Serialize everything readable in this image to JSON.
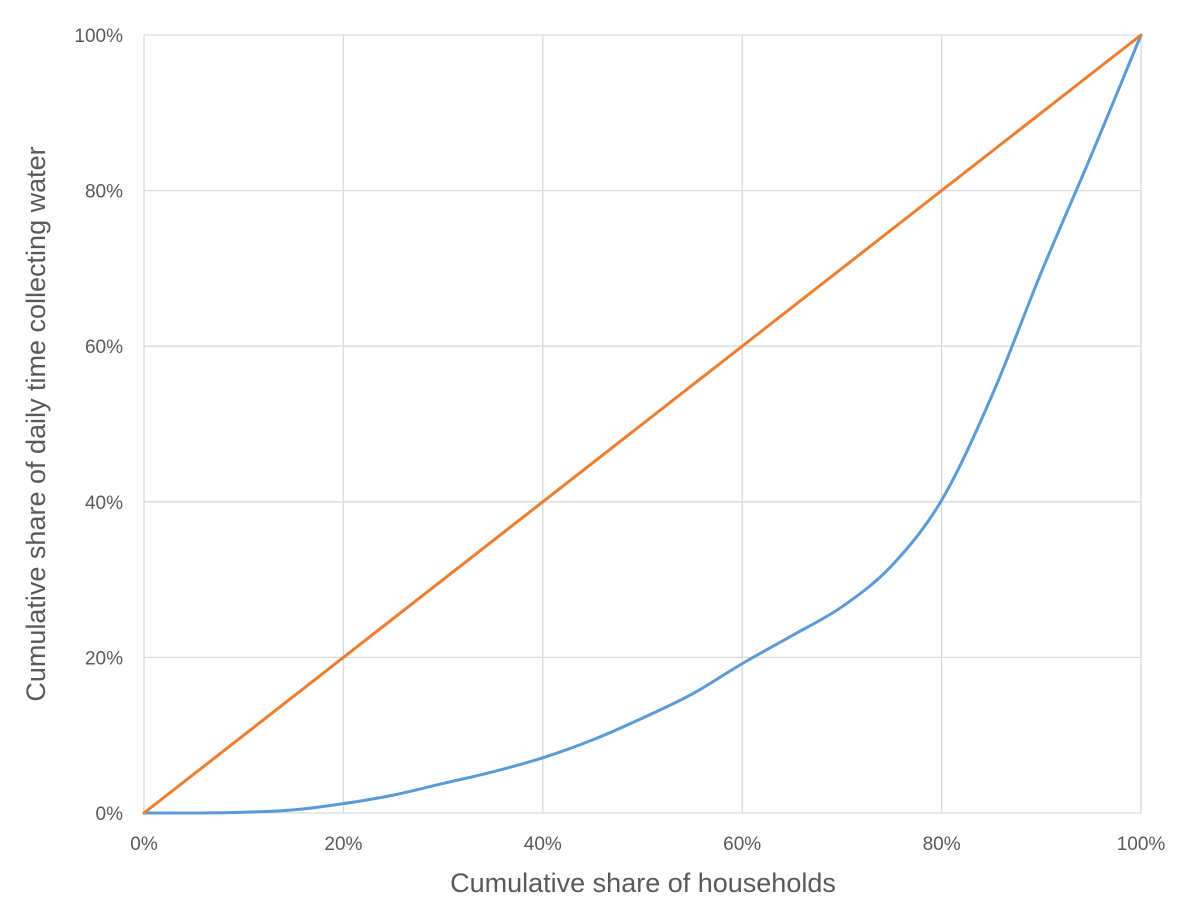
{
  "chart_data": {
    "type": "line",
    "title": "",
    "xlabel": "Cumulative share of households",
    "ylabel": "Cumulative share of daily time collecting water",
    "xlim": [
      0,
      100
    ],
    "ylim": [
      0,
      100
    ],
    "x_ticks": [
      "0%",
      "20%",
      "40%",
      "60%",
      "80%",
      "100%"
    ],
    "y_ticks": [
      "0%",
      "20%",
      "40%",
      "60%",
      "80%",
      "100%"
    ],
    "grid": true,
    "legend": "none",
    "series": [
      {
        "color": "#5b9bd5",
        "x": [
          0,
          5,
          10,
          15,
          20,
          25,
          30,
          35,
          40,
          45,
          50,
          55,
          60,
          65,
          70,
          75,
          80,
          85,
          90,
          95,
          100
        ],
        "y": [
          0,
          0,
          0.1,
          0.4,
          1.2,
          2.3,
          3.8,
          5.3,
          7.1,
          9.4,
          12.2,
          15.3,
          19.2,
          22.8,
          26.5,
          31.8,
          40.2,
          53.5,
          69.5,
          84.5,
          100
        ]
      },
      {
        "color": "#ed7d31",
        "x": [
          0,
          100
        ],
        "y": [
          0,
          100
        ]
      }
    ]
  }
}
